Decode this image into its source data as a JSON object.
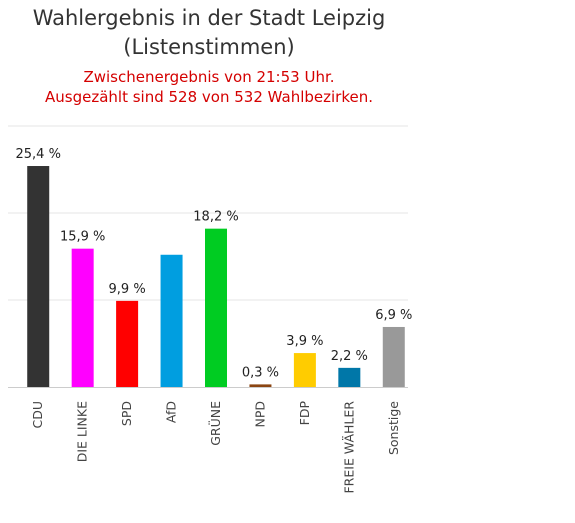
{
  "title_line1": "Wahlergebnis in der Stadt Leipzig",
  "title_line2": "(Listenstimmen)",
  "subtitle_line1": "Zwischenergebnis von 21:53 Uhr.",
  "subtitle_line2": "Ausgezählt sind 528 von 532 Wahlbezirken.",
  "chart_data": {
    "type": "bar",
    "categories": [
      "CDU",
      "DIE LINKE",
      "SPD",
      "AfD",
      "GRÜNE",
      "NPD",
      "FDP",
      "FREIE WÄHLER",
      "Sonstige"
    ],
    "values": [
      25.4,
      15.9,
      9.9,
      15.2,
      18.2,
      0.3,
      3.9,
      2.2,
      6.9
    ],
    "value_labels": [
      "25,4 %",
      "15,9 %",
      "9,9 %",
      "",
      "18,2 %",
      "0,3 %",
      "3,9 %",
      "2,2 %",
      "6,9 %"
    ],
    "colors": [
      "#333333",
      "#ff00ff",
      "#ff0000",
      "#009ee0",
      "#00cc22",
      "#8b4513",
      "#ffcc00",
      "#0077a8",
      "#999999"
    ],
    "ylim": [
      0,
      30
    ],
    "grid": true,
    "xlabel": "",
    "ylabel": ""
  }
}
